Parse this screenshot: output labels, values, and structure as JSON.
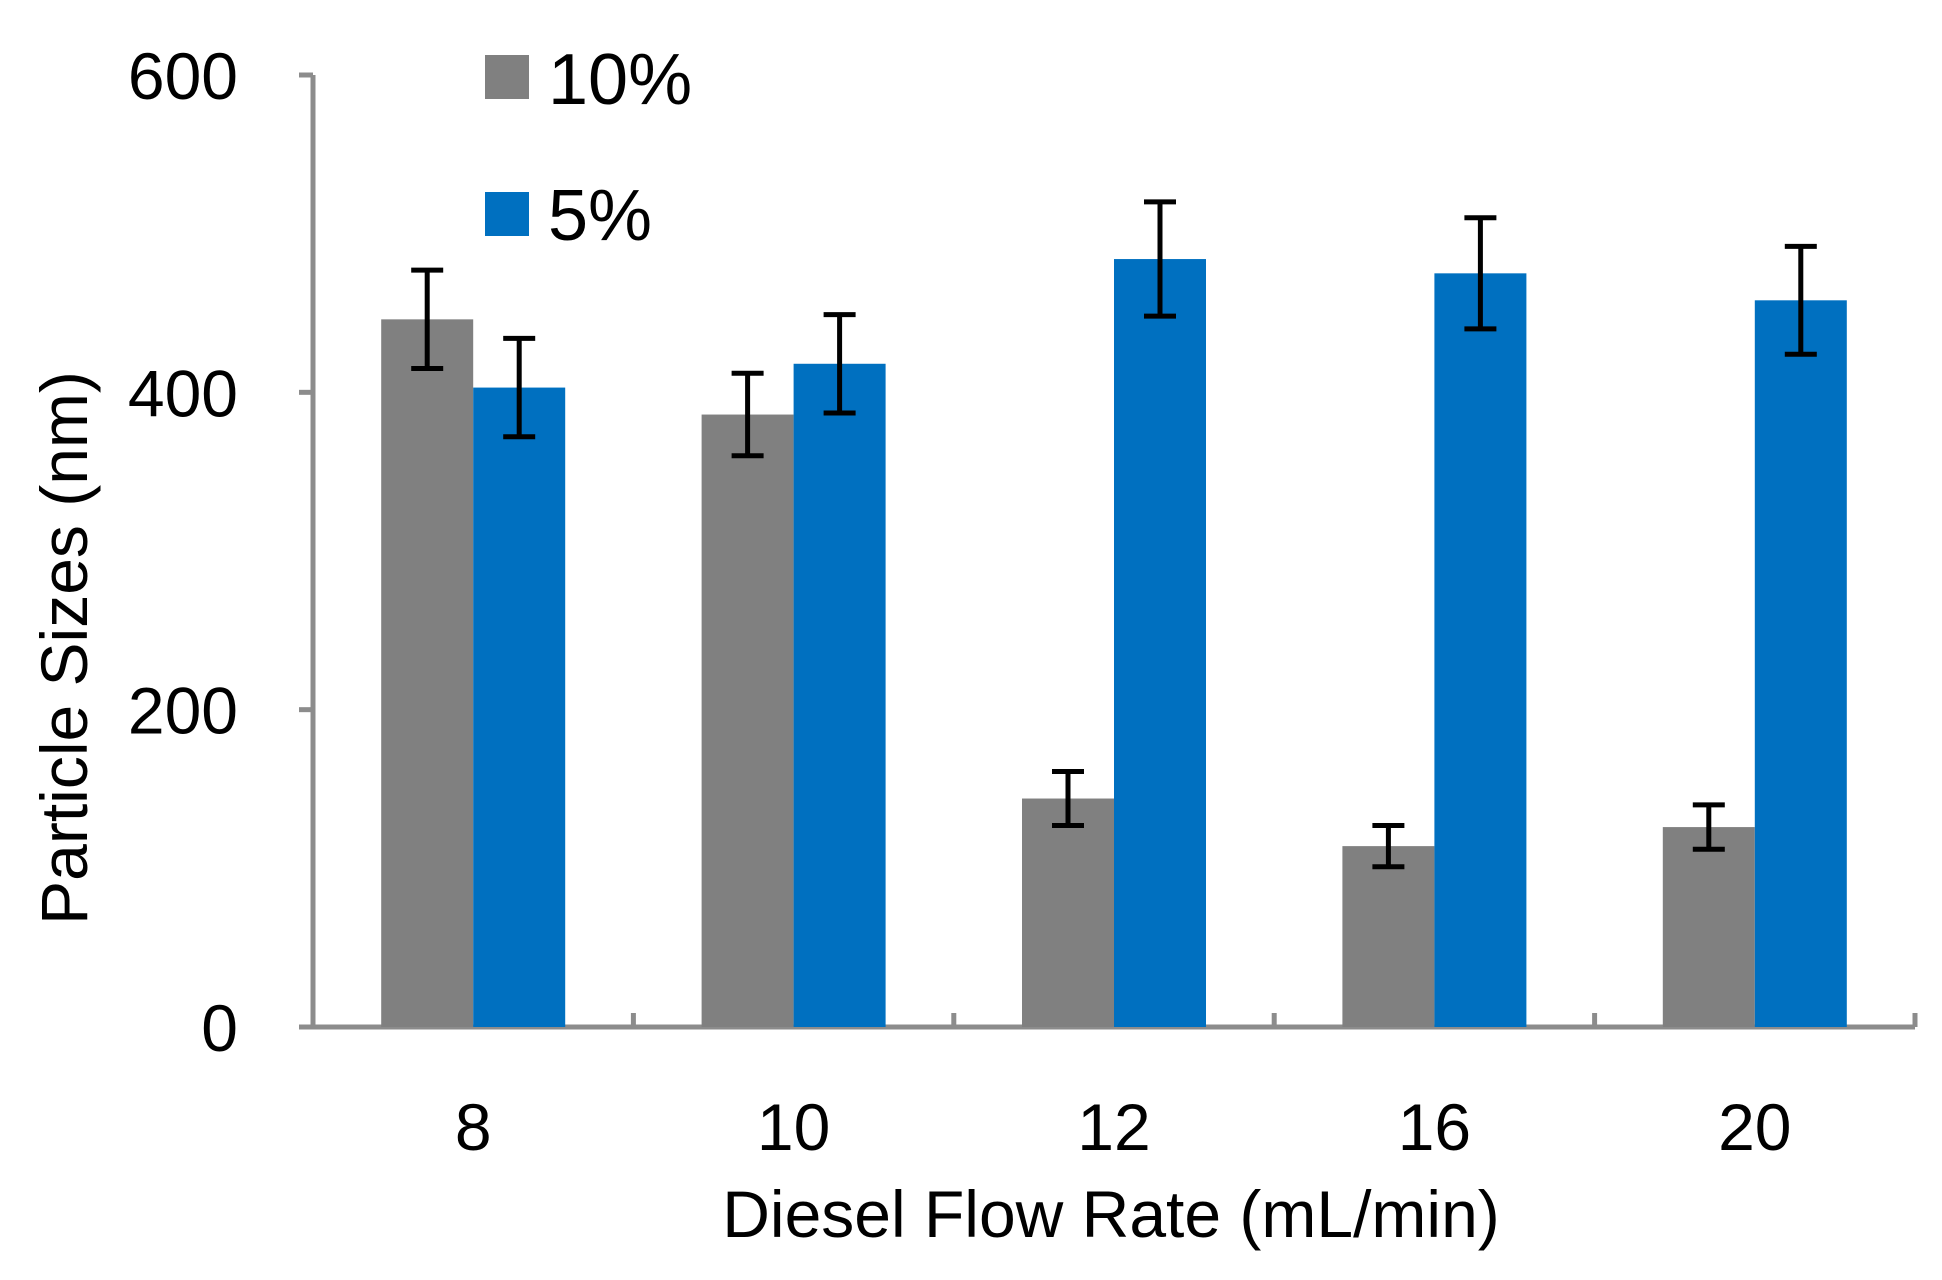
{
  "chart_data": {
    "type": "bar",
    "title": "",
    "xlabel": "Diesel Flow Rate (mL/min)",
    "ylabel": "Particle Sizes (nm)",
    "categories": [
      "8",
      "10",
      "12",
      "16",
      "20"
    ],
    "ylim": [
      0,
      600
    ],
    "yticks": [
      0,
      200,
      400,
      600
    ],
    "grid": false,
    "legend_position": "top-left",
    "series": [
      {
        "name": "10%",
        "color": "#808080",
        "values": [
          446,
          386,
          144,
          114,
          126
        ],
        "errors": [
          31,
          26,
          17,
          13,
          14
        ]
      },
      {
        "name": "5%",
        "color": "#0070C0",
        "values": [
          403,
          418,
          484,
          475,
          458
        ],
        "errors": [
          31,
          31,
          36,
          35,
          34
        ]
      }
    ]
  }
}
